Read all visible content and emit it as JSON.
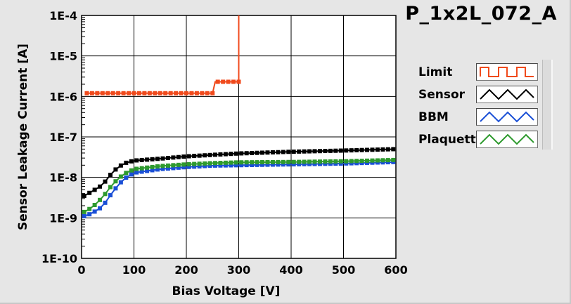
{
  "chart_data": {
    "type": "line",
    "title": "P_1x2L_072_A",
    "xlabel": "Bias Voltage [V]",
    "ylabel": "Sensor Leakage Current [A]",
    "x_scale": "linear",
    "y_scale": "log",
    "xlim": [
      0,
      600
    ],
    "ylim": [
      1e-10,
      0.0001
    ],
    "x_ticks": [
      "0",
      "100",
      "200",
      "300",
      "400",
      "500",
      "600"
    ],
    "y_ticks": [
      "1E-10",
      "1E-9",
      "1E-8",
      "1E-7",
      "1E-6",
      "1E-5",
      "1E-4"
    ],
    "grid": true,
    "legend_position": "right",
    "series": [
      {
        "name": "Limit",
        "color": "#f04a1c",
        "x": [
          10,
          250,
          255,
          300,
          300
        ],
        "y": [
          1.2e-06,
          1.2e-06,
          2.3e-06,
          2.3e-06,
          0.0001
        ]
      },
      {
        "name": "Sensor",
        "color": "#000000",
        "x": [
          5,
          20,
          40,
          60,
          80,
          100,
          150,
          200,
          250,
          300,
          400,
          500,
          600
        ],
        "y": [
          3.5e-09,
          4.5e-09,
          6.5e-09,
          1.4e-08,
          2.2e-08,
          2.6e-08,
          2.9e-08,
          3.3e-08,
          3.6e-08,
          3.9e-08,
          4.3e-08,
          4.6e-08,
          5e-08
        ]
      },
      {
        "name": "BBM",
        "color": "#1a4fd6",
        "x": [
          5,
          20,
          40,
          60,
          80,
          100,
          150,
          200,
          250,
          300,
          400,
          500,
          600
        ],
        "y": [
          1.1e-09,
          1.3e-09,
          1.9e-09,
          4.5e-09,
          9e-09,
          1.3e-08,
          1.6e-08,
          1.8e-08,
          1.95e-08,
          2e-08,
          2.1e-08,
          2.2e-08,
          2.4e-08
        ]
      },
      {
        "name": "Plaquette",
        "color": "#2e9a2e",
        "x": [
          5,
          20,
          40,
          60,
          80,
          100,
          150,
          200,
          250,
          300,
          400,
          500,
          600
        ],
        "y": [
          1.4e-09,
          1.8e-09,
          3.2e-09,
          7e-09,
          1.2e-08,
          1.6e-08,
          1.9e-08,
          2.1e-08,
          2.25e-08,
          2.35e-08,
          2.4e-08,
          2.5e-08,
          2.7e-08
        ]
      }
    ]
  }
}
